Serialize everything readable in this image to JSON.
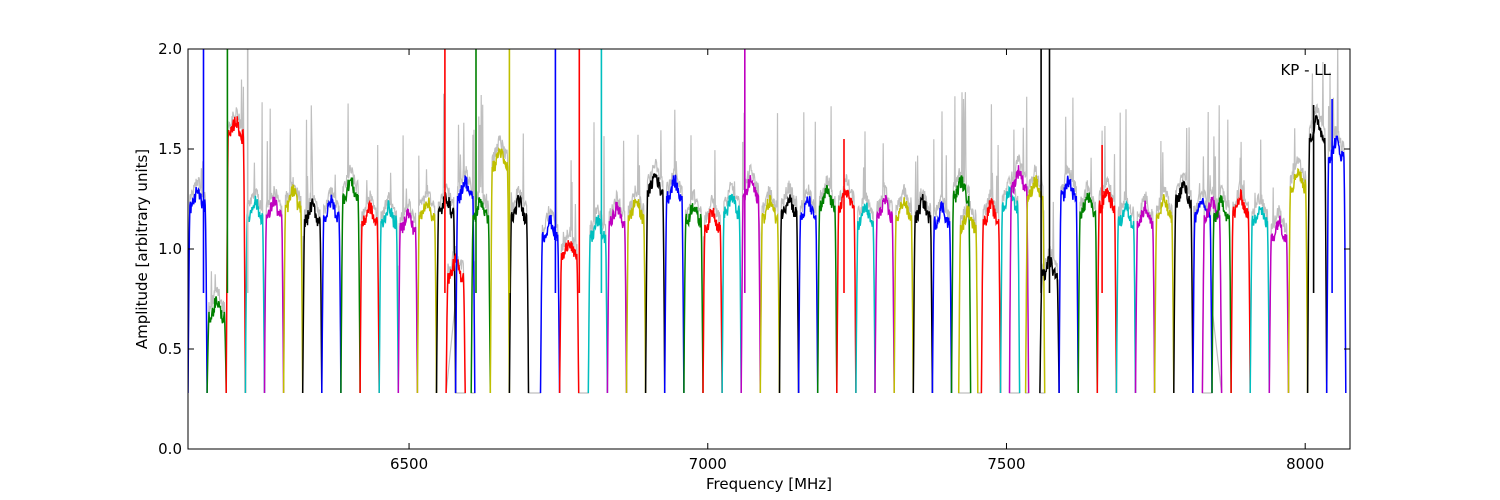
{
  "chart_data": {
    "type": "line",
    "title": "",
    "annotation": "KP - LL",
    "xlabel": "Frequency [MHz]",
    "ylabel": "Amplitude [arbitrary units]",
    "xlim": [
      6130,
      8075
    ],
    "ylim": [
      0.0,
      2.0
    ],
    "x_ticks": [
      6500,
      7000,
      7500,
      8000
    ],
    "x_tick_labels": [
      "6500",
      "7000",
      "7500",
      "8000"
    ],
    "y_ticks": [
      0.0,
      0.5,
      1.0,
      1.5,
      2.0
    ],
    "y_tick_labels": [
      "0.0",
      "0.5",
      "1.0",
      "1.5",
      "2.0"
    ],
    "grid": false,
    "legend": "none",
    "band_width_mhz": 32,
    "band_base_level": 0.28,
    "raw_trace_color": "#bfbfbf",
    "series": [
      {
        "color": "#0000ff",
        "start": 6130,
        "level": 1.25
      },
      {
        "color": "#008000",
        "start": 6162,
        "level": 0.7
      },
      {
        "color": "#ff0000",
        "start": 6194,
        "level": 1.6
      },
      {
        "color": "#00bfbf",
        "start": 6226,
        "level": 1.2
      },
      {
        "color": "#bf00bf",
        "start": 6258,
        "level": 1.2
      },
      {
        "color": "#bfbf00",
        "start": 6290,
        "level": 1.25
      },
      {
        "color": "#000000",
        "start": 6322,
        "level": 1.18
      },
      {
        "color": "#0000ff",
        "start": 6354,
        "level": 1.2
      },
      {
        "color": "#008000",
        "start": 6386,
        "level": 1.3
      },
      {
        "color": "#ff0000",
        "start": 6418,
        "level": 1.17
      },
      {
        "color": "#00bfbf",
        "start": 6450,
        "level": 1.17
      },
      {
        "color": "#bf00bf",
        "start": 6482,
        "level": 1.14
      },
      {
        "color": "#bfbf00",
        "start": 6514,
        "level": 1.2
      },
      {
        "color": "#000000",
        "start": 6546,
        "level": 1.22
      },
      {
        "color": "#ff0000",
        "start": 6562,
        "level": 0.9
      },
      {
        "color": "#0000ff",
        "start": 6578,
        "level": 1.3
      },
      {
        "color": "#008000",
        "start": 6604,
        "level": 1.2
      },
      {
        "color": "#bfbf00",
        "start": 6636,
        "level": 1.45
      },
      {
        "color": "#000000",
        "start": 6668,
        "level": 1.2
      },
      {
        "color": "#0000ff",
        "start": 6720,
        "level": 1.1
      },
      {
        "color": "#ff0000",
        "start": 6752,
        "level": 1.0
      },
      {
        "color": "#00bfbf",
        "start": 6800,
        "level": 1.1
      },
      {
        "color": "#bf00bf",
        "start": 6832,
        "level": 1.17
      },
      {
        "color": "#bfbf00",
        "start": 6864,
        "level": 1.2
      },
      {
        "color": "#000000",
        "start": 6896,
        "level": 1.33
      },
      {
        "color": "#0000ff",
        "start": 6928,
        "level": 1.3
      },
      {
        "color": "#008000",
        "start": 6960,
        "level": 1.18
      },
      {
        "color": "#ff0000",
        "start": 6992,
        "level": 1.15
      },
      {
        "color": "#00bfbf",
        "start": 7024,
        "level": 1.22
      },
      {
        "color": "#bf00bf",
        "start": 7056,
        "level": 1.3
      },
      {
        "color": "#bfbf00",
        "start": 7088,
        "level": 1.2
      },
      {
        "color": "#000000",
        "start": 7120,
        "level": 1.22
      },
      {
        "color": "#0000ff",
        "start": 7152,
        "level": 1.2
      },
      {
        "color": "#008000",
        "start": 7184,
        "level": 1.25
      },
      {
        "color": "#ff0000",
        "start": 7216,
        "level": 1.25
      },
      {
        "color": "#00bfbf",
        "start": 7248,
        "level": 1.17
      },
      {
        "color": "#bf00bf",
        "start": 7280,
        "level": 1.2
      },
      {
        "color": "#bfbf00",
        "start": 7312,
        "level": 1.2
      },
      {
        "color": "#000000",
        "start": 7344,
        "level": 1.2
      },
      {
        "color": "#0000ff",
        "start": 7376,
        "level": 1.17
      },
      {
        "color": "#008000",
        "start": 7408,
        "level": 1.3
      },
      {
        "color": "#bfbf00",
        "start": 7420,
        "level": 1.15
      },
      {
        "color": "#ff0000",
        "start": 7458,
        "level": 1.18
      },
      {
        "color": "#00bfbf",
        "start": 7490,
        "level": 1.25
      },
      {
        "color": "#bf00bf",
        "start": 7505,
        "level": 1.35
      },
      {
        "color": "#bfbf00",
        "start": 7532,
        "level": 1.3
      },
      {
        "color": "#000000",
        "start": 7556,
        "level": 0.9
      },
      {
        "color": "#0000ff",
        "start": 7588,
        "level": 1.3
      },
      {
        "color": "#008000",
        "start": 7620,
        "level": 1.22
      },
      {
        "color": "#ff0000",
        "start": 7652,
        "level": 1.25
      },
      {
        "color": "#00bfbf",
        "start": 7684,
        "level": 1.17
      },
      {
        "color": "#bf00bf",
        "start": 7716,
        "level": 1.17
      },
      {
        "color": "#bfbf00",
        "start": 7748,
        "level": 1.2
      },
      {
        "color": "#000000",
        "start": 7780,
        "level": 1.28
      },
      {
        "color": "#0000ff",
        "start": 7812,
        "level": 1.2
      },
      {
        "color": "#bf00bf",
        "start": 7828,
        "level": 1.2
      },
      {
        "color": "#008000",
        "start": 7844,
        "level": 1.2
      },
      {
        "color": "#ff0000",
        "start": 7876,
        "level": 1.22
      },
      {
        "color": "#00bfbf",
        "start": 7908,
        "level": 1.17
      },
      {
        "color": "#bf00bf",
        "start": 7940,
        "level": 1.1
      },
      {
        "color": "#bfbf00",
        "start": 7972,
        "level": 1.35
      },
      {
        "color": "#000000",
        "start": 8004,
        "level": 1.6
      },
      {
        "color": "#0000ff",
        "start": 8036,
        "level": 1.5
      }
    ],
    "spikes": [
      {
        "x": 6156,
        "y": 2.0,
        "color": "#0000ff"
      },
      {
        "x": 6196,
        "y": 2.0,
        "color": "#008000"
      },
      {
        "x": 6230,
        "y": 2.0,
        "color": "#bfbfbf"
      },
      {
        "x": 6560,
        "y": 2.0,
        "color": "#ff0000"
      },
      {
        "x": 6612,
        "y": 2.0,
        "color": "#008000"
      },
      {
        "x": 6668,
        "y": 2.0,
        "color": "#bfbf00"
      },
      {
        "x": 6745,
        "y": 2.0,
        "color": "#0000ff"
      },
      {
        "x": 6785,
        "y": 2.0,
        "color": "#ff0000"
      },
      {
        "x": 6822,
        "y": 2.0,
        "color": "#00bfbf"
      },
      {
        "x": 7062,
        "y": 2.0,
        "color": "#bf00bf"
      },
      {
        "x": 7228,
        "y": 1.55,
        "color": "#ff0000"
      },
      {
        "x": 7558,
        "y": 2.0,
        "color": "#000000"
      },
      {
        "x": 7572,
        "y": 2.0,
        "color": "#000000"
      },
      {
        "x": 7660,
        "y": 1.52,
        "color": "#ff0000"
      },
      {
        "x": 8014,
        "y": 1.72,
        "color": "#000000"
      },
      {
        "x": 8045,
        "y": 1.75,
        "color": "#0000ff"
      }
    ]
  }
}
